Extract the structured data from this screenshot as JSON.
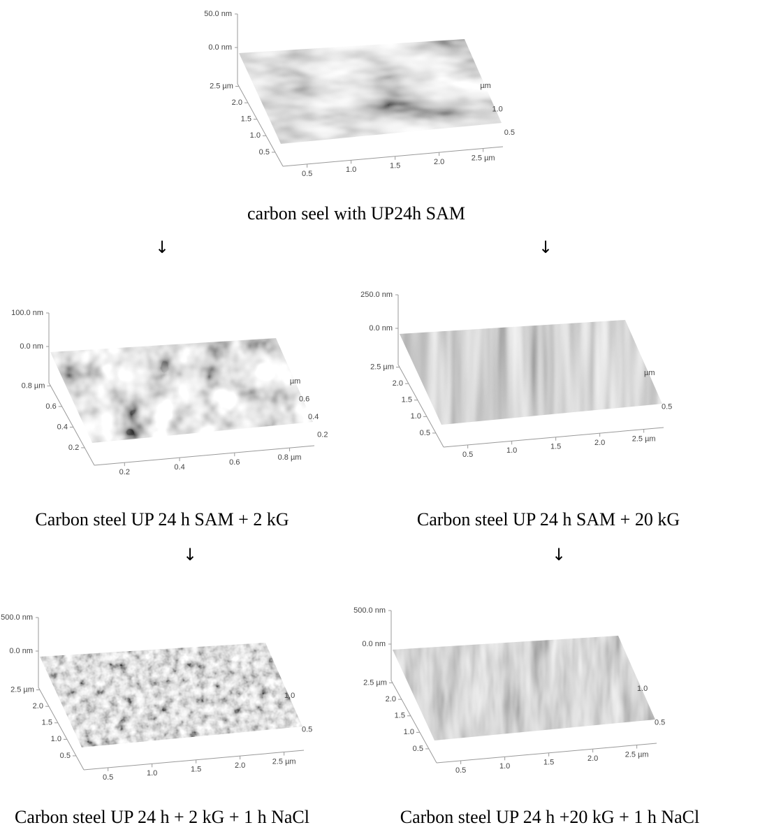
{
  "panels": [
    {
      "caption": "carbon seel with UP24h SAM",
      "z_labels": [
        "50.0 nm",
        "0.0 nm"
      ],
      "y_labels": [
        "2.5 µm",
        "2.0",
        "1.5",
        "1.0",
        "0.5"
      ],
      "x_labels": [
        "0.5",
        "1.0",
        "1.5",
        "2.0",
        "2.5 µm"
      ],
      "right_labels": [
        "µm",
        "1.0",
        "0.5"
      ]
    },
    {
      "caption": "Carbon steel UP 24 h SAM + 2 kG",
      "z_labels": [
        "100.0 nm",
        "0.0 nm"
      ],
      "y_labels": [
        "0.8 µm",
        "0.6",
        "0.4",
        "0.2"
      ],
      "x_labels": [
        "0.2",
        "0.4",
        "0.6",
        "0.8 µm"
      ],
      "right_labels": [
        "µm",
        "0.6",
        "0.4",
        "0.2"
      ]
    },
    {
      "caption": "Carbon steel UP 24 h SAM + 20 kG",
      "z_labels": [
        "250.0 nm",
        "0.0 nm"
      ],
      "y_labels": [
        "2.5 µm",
        "2.0",
        "1.5",
        "1.0",
        "0.5"
      ],
      "x_labels": [
        "0.5",
        "1.0",
        "1.5",
        "2.0",
        "2.5 µm"
      ],
      "right_labels": [
        "µm",
        "0.5"
      ]
    },
    {
      "caption": "Carbon steel UP 24 h + 2 kG + 1 h NaCl",
      "z_labels": [
        "500.0 nm",
        "0.0 nm"
      ],
      "y_labels": [
        "2.5 µm",
        "2.0",
        "1.5",
        "1.0",
        "0.5"
      ],
      "x_labels": [
        "0.5",
        "1.0",
        "1.5",
        "2.0",
        "2.5 µm"
      ],
      "right_labels": [
        "1.0",
        "0.5"
      ]
    },
    {
      "caption": "Carbon steel UP 24 h +20 kG + 1 h NaCl",
      "z_labels": [
        "500.0 nm",
        "0.0 nm"
      ],
      "y_labels": [
        "2.5 µm",
        "2.0",
        "1.5",
        "1.0",
        "0.5"
      ],
      "x_labels": [
        "0.5",
        "1.0",
        "1.5",
        "2.0",
        "2.5 µm"
      ],
      "right_labels": [
        "1.0",
        "0.5"
      ]
    }
  ],
  "arrows": [
    "↓",
    "↓",
    "↓",
    "↓"
  ]
}
